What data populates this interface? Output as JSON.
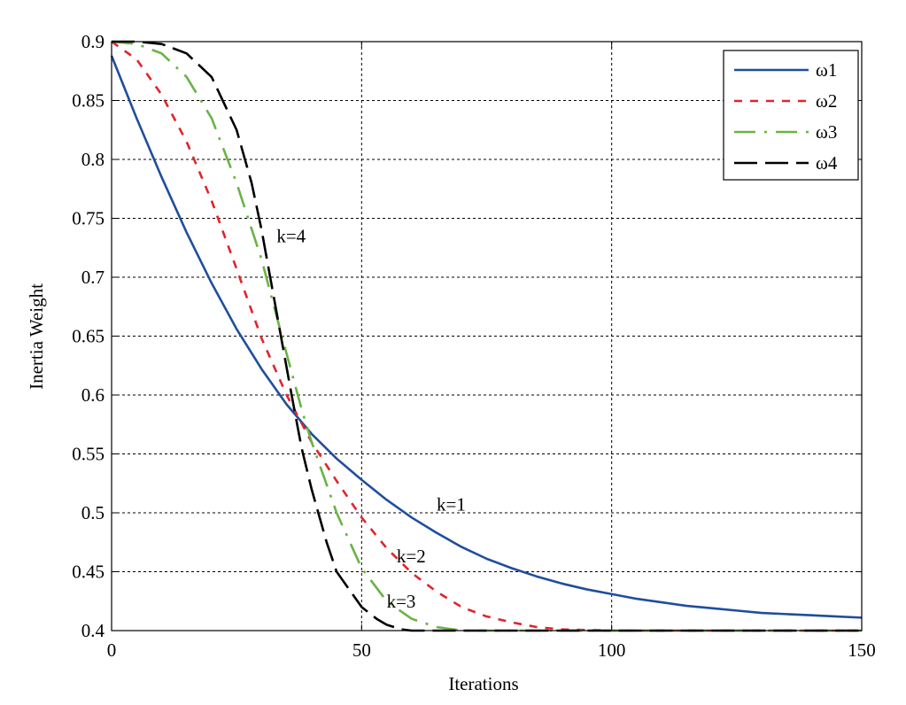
{
  "chart_data": {
    "type": "line",
    "title": "",
    "xlabel": "Iterations",
    "ylabel": "Inertia Weight",
    "xlim": [
      0,
      150
    ],
    "ylim": [
      0.4,
      0.9
    ],
    "xticks": [
      0,
      50,
      100,
      150
    ],
    "yticks": [
      0.4,
      0.45,
      0.5,
      0.55,
      0.6,
      0.65,
      0.7,
      0.75,
      0.8,
      0.85,
      0.9
    ],
    "xtick_labels": [
      "0",
      "50",
      "100",
      "150"
    ],
    "ytick_labels": [
      "0.4",
      "0.45",
      "0.5",
      "0.55",
      "0.6",
      "0.65",
      "0.7",
      "0.75",
      "0.8",
      "0.85",
      "0.9"
    ],
    "grid": true,
    "legend_position": "top-right",
    "series": [
      {
        "name": "ω1",
        "color": "#1f4e9c",
        "style": "solid",
        "x": [
          0,
          5,
          10,
          15,
          20,
          25,
          30,
          35,
          40,
          45,
          50,
          55,
          60,
          65,
          70,
          75,
          80,
          85,
          90,
          95,
          100,
          105,
          110,
          115,
          120,
          125,
          130,
          135,
          140,
          145,
          150
        ],
        "y": [
          0.888,
          0.835,
          0.785,
          0.738,
          0.695,
          0.656,
          0.622,
          0.592,
          0.567,
          0.546,
          0.528,
          0.511,
          0.496,
          0.483,
          0.471,
          0.461,
          0.453,
          0.446,
          0.44,
          0.435,
          0.431,
          0.427,
          0.424,
          0.421,
          0.419,
          0.417,
          0.415,
          0.414,
          0.413,
          0.412,
          0.411
        ]
      },
      {
        "name": "ω2",
        "color": "#e0242c",
        "style": "dashed",
        "x": [
          0,
          5,
          10,
          15,
          20,
          25,
          30,
          35,
          40,
          45,
          50,
          55,
          60,
          65,
          70,
          75,
          80,
          85,
          90,
          100,
          150
        ],
        "y": [
          0.9,
          0.885,
          0.855,
          0.815,
          0.765,
          0.707,
          0.648,
          0.6,
          0.56,
          0.527,
          0.496,
          0.47,
          0.449,
          0.433,
          0.42,
          0.412,
          0.407,
          0.403,
          0.401,
          0.4,
          0.4
        ]
      },
      {
        "name": "ω3",
        "color": "#6ab344",
        "style": "dashdot",
        "x": [
          0,
          5,
          10,
          15,
          20,
          25,
          30,
          35,
          38,
          40,
          45,
          50,
          55,
          60,
          65,
          70,
          150
        ],
        "y": [
          0.9,
          0.898,
          0.89,
          0.87,
          0.835,
          0.78,
          0.715,
          0.635,
          0.588,
          0.56,
          0.5,
          0.453,
          0.425,
          0.41,
          0.403,
          0.4,
          0.4
        ]
      },
      {
        "name": "ω4",
        "color": "#000000",
        "style": "longdash",
        "x": [
          0,
          5,
          10,
          15,
          20,
          25,
          28,
          30,
          33,
          36,
          38,
          40,
          43,
          45,
          48,
          50,
          53,
          55,
          58,
          60,
          150
        ],
        "y": [
          0.9,
          0.9,
          0.898,
          0.89,
          0.87,
          0.825,
          0.78,
          0.74,
          0.67,
          0.6,
          0.555,
          0.52,
          0.475,
          0.45,
          0.432,
          0.42,
          0.41,
          0.405,
          0.401,
          0.4,
          0.4
        ]
      }
    ],
    "annotations": [
      {
        "text": "k=4",
        "x": 33,
        "y": 0.735
      },
      {
        "text": "k=1",
        "x": 65,
        "y": 0.507
      },
      {
        "text": "k=2",
        "x": 57,
        "y": 0.463
      },
      {
        "text": "k=3",
        "x": 55,
        "y": 0.425
      }
    ]
  }
}
